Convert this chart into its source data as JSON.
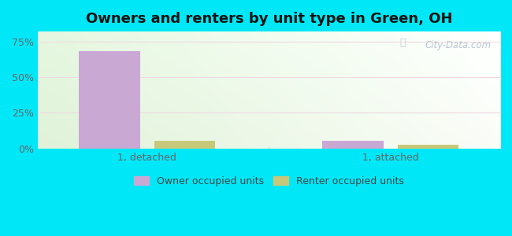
{
  "title": "Owners and renters by unit type in Green, OH",
  "categories": [
    "1, detached",
    "1, attached"
  ],
  "owner_values": [
    68.0,
    5.5
  ],
  "renter_values": [
    5.5,
    2.5
  ],
  "owner_color": "#c9a8d4",
  "renter_color": "#c8c87a",
  "background_color": "#00e8f8",
  "yticks": [
    0,
    25,
    50,
    75
  ],
  "ytick_labels": [
    "0%",
    "25%",
    "50%",
    "75%"
  ],
  "ylim": [
    0,
    82
  ],
  "bar_width": 0.25,
  "group_positions": [
    0.45,
    1.45
  ],
  "xlim": [
    0.0,
    1.9
  ],
  "legend_owner": "Owner occupied units",
  "legend_renter": "Renter occupied units",
  "watermark": "City-Data.com",
  "title_fontsize": 13,
  "tick_fontsize": 9,
  "legend_fontsize": 9,
  "grid_color": "#e8e8f8",
  "tick_color": "#666666"
}
